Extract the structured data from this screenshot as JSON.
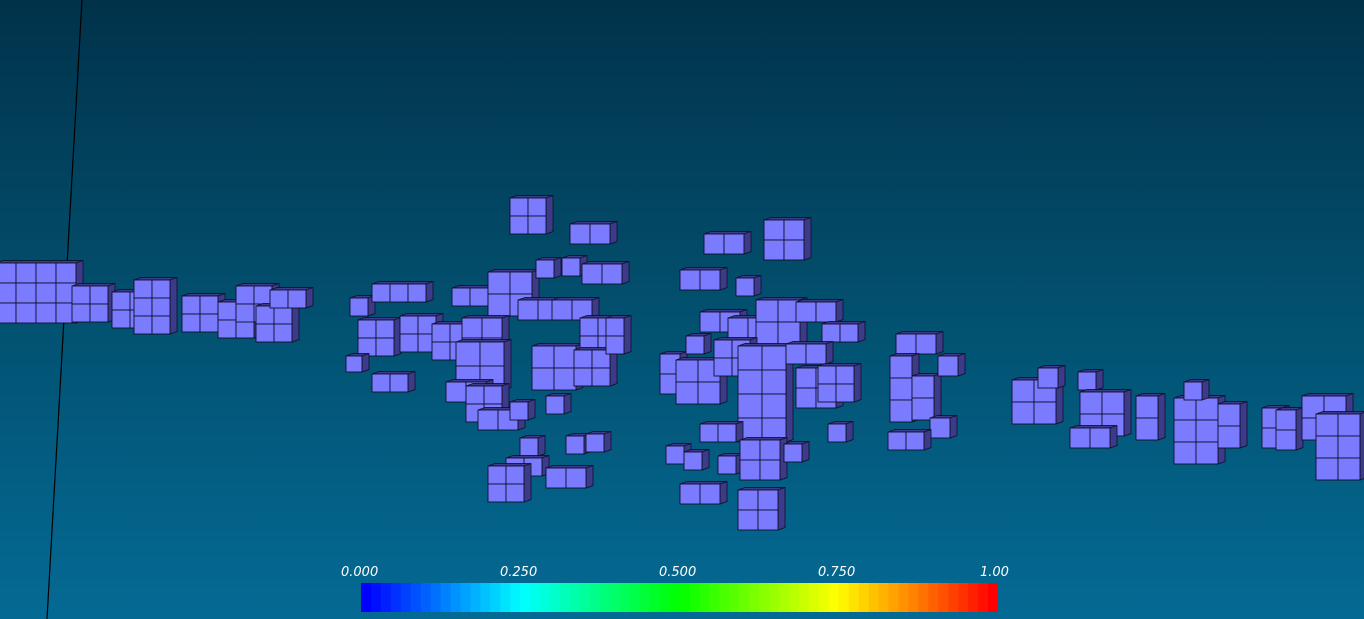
{
  "viewport": {
    "background_top": "#01324a",
    "background_bottom": "#046a94",
    "voxel_face_color": "#7b7bff",
    "voxel_side_color": "#3b3b8a",
    "voxel_edge_color": "#10102a",
    "axis_line_color": "#000000"
  },
  "colorbar": {
    "colormap": "jet",
    "range": [
      0,
      1
    ],
    "ticks": [
      "0.000",
      "0.250",
      "0.500",
      "0.750",
      "1.00"
    ],
    "colors": [
      "#0000ff",
      "#00ffff",
      "#00ff00",
      "#ffff00",
      "#ff0000"
    ]
  }
}
